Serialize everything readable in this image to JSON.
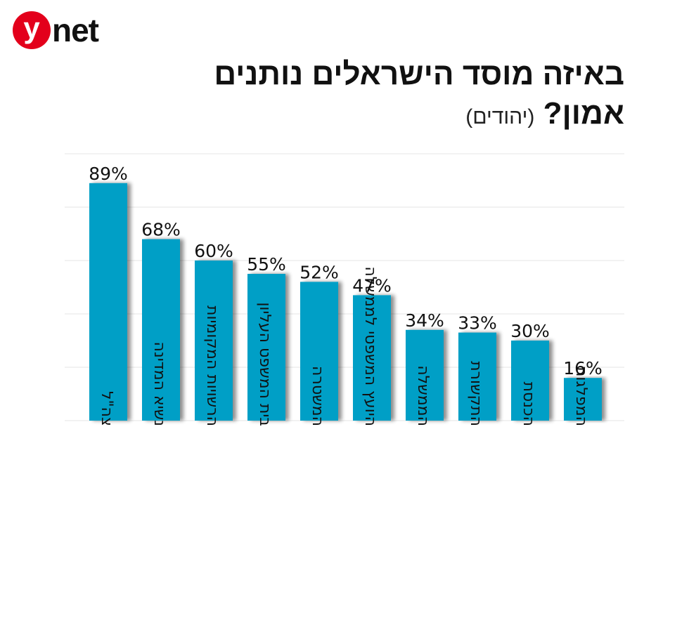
{
  "logo": {
    "y": "y",
    "net": "net"
  },
  "title": {
    "line1": "באיזה מוסד הישראלים נותנים",
    "line2": "אמון?",
    "subtitle": "(יהודים)"
  },
  "colors": {
    "bar": "#009fc6",
    "shadow": "#9a9a9a",
    "grid": "#e4e4e4",
    "text": "#111111"
  },
  "chart_data": {
    "type": "bar",
    "title": "באיזה מוסד הישראלים נותנים אמון? (יהודים)",
    "categories": [
      "צה\"ל",
      "נשיא המדינה",
      "הרשויות המקומיות",
      "בית המשפט העליון",
      "המשטרה",
      "היועץ המשפטי לממשלה",
      "הממשלה",
      "התקשורת",
      "הכנסת",
      "המפלגות"
    ],
    "values": [
      89,
      68,
      60,
      55,
      52,
      47,
      34,
      33,
      30,
      16
    ],
    "data_labels": [
      "89%",
      "68%",
      "60%",
      "55%",
      "52%",
      "47%",
      "34%",
      "33%",
      "30%",
      "16%"
    ],
    "ylim": [
      0,
      100
    ],
    "grid": true
  }
}
